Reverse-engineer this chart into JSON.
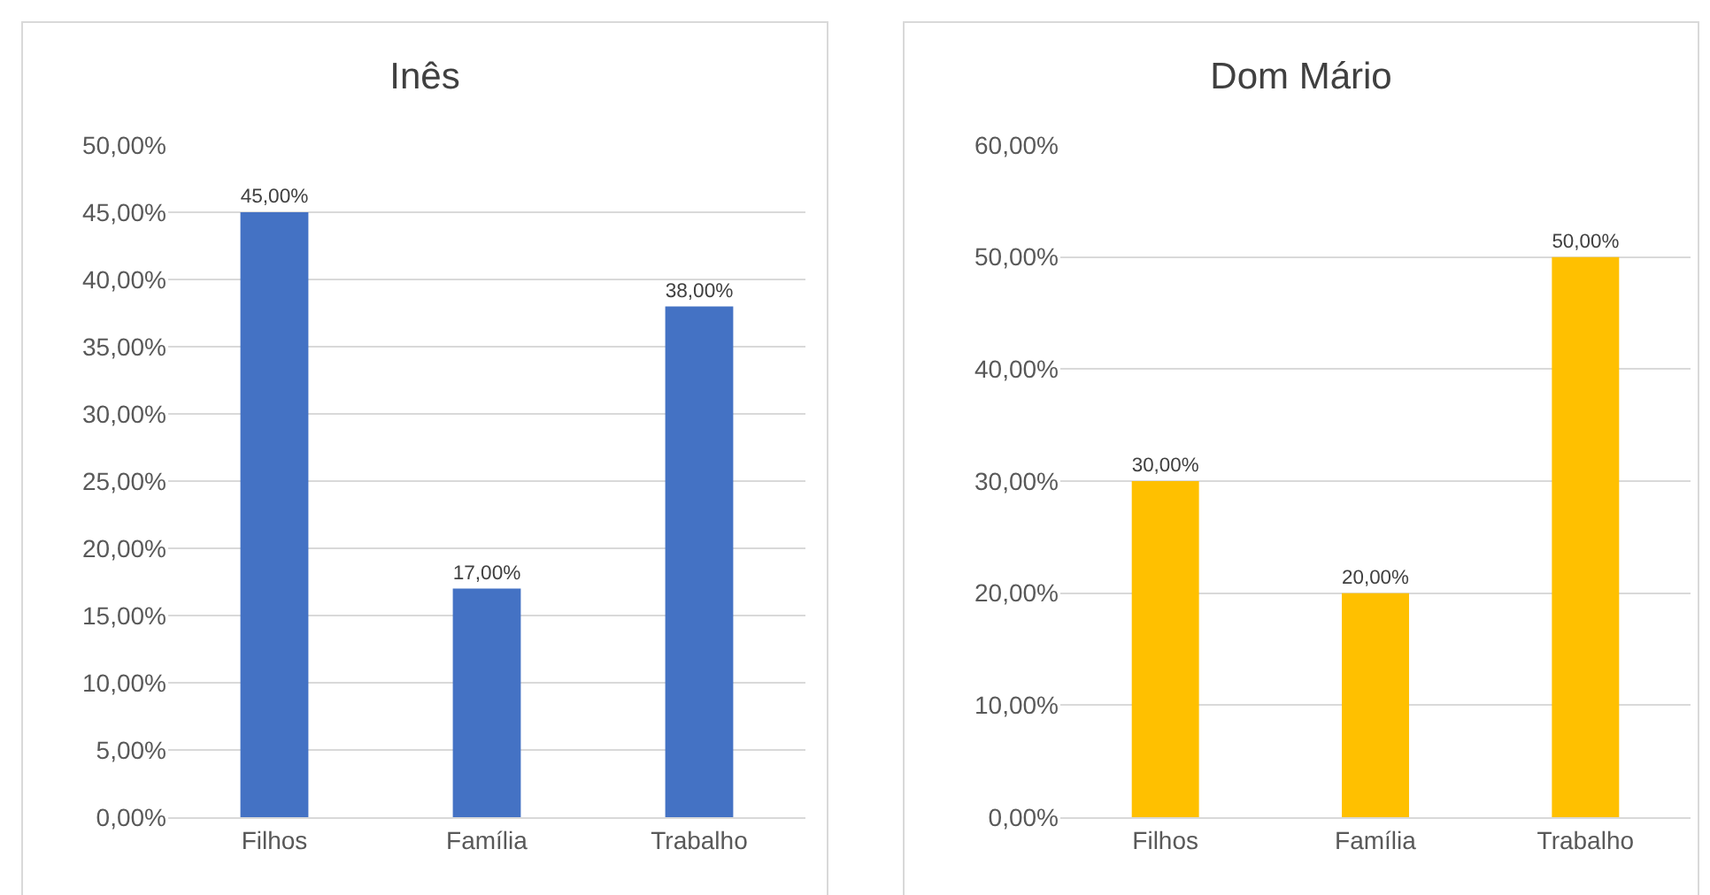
{
  "chart_data": [
    {
      "type": "bar",
      "title": "Inês",
      "categories": [
        "Filhos",
        "Família",
        "Trabalho"
      ],
      "values": [
        45,
        17,
        38
      ],
      "color": "#4472c4",
      "value_labels": [
        "45,00%",
        "17,00%",
        "38,00%"
      ],
      "ylim": [
        0,
        50
      ],
      "yticks": [
        {
          "value": 0,
          "label": "0,00%"
        },
        {
          "value": 5,
          "label": "5,00%"
        },
        {
          "value": 10,
          "label": "10,00%"
        },
        {
          "value": 15,
          "label": "15,00%"
        },
        {
          "value": 20,
          "label": "20,00%"
        },
        {
          "value": 25,
          "label": "25,00%"
        },
        {
          "value": 30,
          "label": "30,00%"
        },
        {
          "value": 35,
          "label": "35,00%"
        },
        {
          "value": 40,
          "label": "40,00%"
        },
        {
          "value": 45,
          "label": "45,00%"
        },
        {
          "value": 50,
          "label": "50,00%"
        }
      ],
      "grid": "y"
    },
    {
      "type": "bar",
      "title": "Dom Mário",
      "categories": [
        "Filhos",
        "Família",
        "Trabalho"
      ],
      "values": [
        30,
        20,
        50
      ],
      "color": "#ffc000",
      "value_labels": [
        "30,00%",
        "20,00%",
        "50,00%"
      ],
      "ylim": [
        0,
        60
      ],
      "yticks": [
        {
          "value": 0,
          "label": "0,00%"
        },
        {
          "value": 10,
          "label": "10,00%"
        },
        {
          "value": 20,
          "label": "20,00%"
        },
        {
          "value": 30,
          "label": "30,00%"
        },
        {
          "value": 40,
          "label": "40,00%"
        },
        {
          "value": 50,
          "label": "50,00%"
        },
        {
          "value": 60,
          "label": "60,00%"
        }
      ],
      "grid": "y"
    }
  ]
}
